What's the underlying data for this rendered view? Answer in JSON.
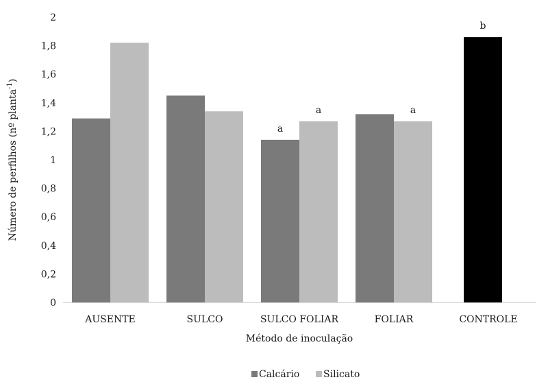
{
  "chart_data": {
    "type": "bar",
    "title": "",
    "xlabel": "Método de inoculação",
    "ylabel": "Número de perfilhos  (nº planta",
    "ylabel_superscript": "-1",
    "ylabel_suffix": ")",
    "ylim": [
      0,
      2
    ],
    "yticks": [
      "0",
      "0,2",
      "0,4",
      "0,6",
      "0,8",
      "1",
      "1,2",
      "1,4",
      "1,6",
      "1,8",
      "2"
    ],
    "ytick_values": [
      0,
      0.2,
      0.4,
      0.6,
      0.8,
      1.0,
      1.2,
      1.4,
      1.6,
      1.8,
      2.0
    ],
    "categories": [
      "AUSENTE",
      "SULCO",
      "SULCO FOLIAR",
      "FOLIAR",
      "CONTROLE"
    ],
    "series": [
      {
        "name": "Calcário",
        "color": "#7a7a7a",
        "values": [
          1.29,
          1.45,
          1.14,
          1.32,
          null
        ],
        "annotations": [
          "",
          "",
          "a",
          "",
          ""
        ]
      },
      {
        "name": "Silicato",
        "color": "#bcbcbc",
        "values": [
          1.82,
          1.34,
          1.27,
          1.27,
          null
        ],
        "annotations": [
          "",
          "",
          "a",
          "a",
          ""
        ]
      },
      {
        "name": "",
        "color": "#000000",
        "values": [
          null,
          null,
          null,
          null,
          1.86
        ],
        "annotations": [
          "",
          "",
          "",
          "",
          "b"
        ]
      }
    ],
    "grid": false,
    "legend_position": "bottom"
  }
}
